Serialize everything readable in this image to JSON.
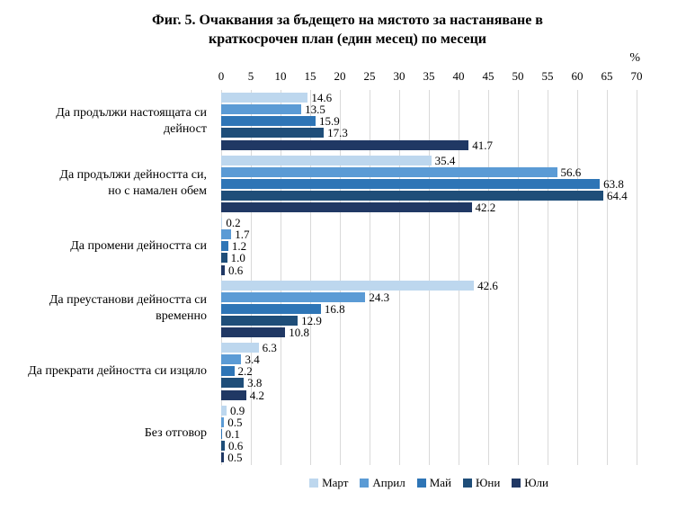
{
  "figure": {
    "title_line1": "Фиг. 5. Очаквания за бъдещето на мястото за настаняване в",
    "title_line2": "краткосрочен план (един месец) по месеци",
    "unit_label": "%"
  },
  "chart_data": {
    "type": "bar",
    "orientation": "horizontal",
    "title": "Фиг. 5. Очаквания за бъдещето на мястото за настаняване в краткосрочен план (един месец) по месеци",
    "xlabel": "%",
    "xlim": [
      0,
      70
    ],
    "x_ticks": [
      0,
      5,
      10,
      15,
      20,
      25,
      30,
      35,
      40,
      45,
      50,
      55,
      60,
      65,
      70
    ],
    "grid": true,
    "gridline_color": "#d9d9d9",
    "legend_position": "bottom",
    "value_label_decimals": 1,
    "categories": [
      "Да продължи настоящата си дейност",
      "Да продължи дейността си, но с намален обем",
      "Да промени дейността си",
      "Да преустанови дейността си временно",
      "Да прекрати дейността си изцяло",
      "Без отговор"
    ],
    "category_lines": [
      [
        "Да продължи настоящата си",
        "дейност"
      ],
      [
        "Да продължи дейността си,",
        "но с намален обем"
      ],
      [
        "Да промени дейността си"
      ],
      [
        "Да преустанови дейността си",
        "временно"
      ],
      [
        "Да прекрати дейността си изцяло"
      ],
      [
        "Без отговор"
      ]
    ],
    "series": [
      {
        "name": "Март",
        "color": "#BDD7EE",
        "values": [
          14.6,
          35.4,
          0.2,
          42.6,
          6.3,
          0.9
        ]
      },
      {
        "name": "Април",
        "color": "#5B9BD5",
        "values": [
          13.5,
          56.6,
          1.7,
          24.3,
          3.4,
          0.5
        ]
      },
      {
        "name": "Май",
        "color": "#2E75B6",
        "values": [
          15.9,
          63.8,
          1.2,
          16.8,
          2.2,
          0.1
        ]
      },
      {
        "name": "Юни",
        "color": "#1F4E79",
        "values": [
          17.3,
          64.4,
          1.0,
          12.9,
          3.8,
          0.6
        ]
      },
      {
        "name": "Юли",
        "color": "#203864",
        "values": [
          41.7,
          42.2,
          0.6,
          10.8,
          4.2,
          0.5
        ]
      }
    ]
  }
}
